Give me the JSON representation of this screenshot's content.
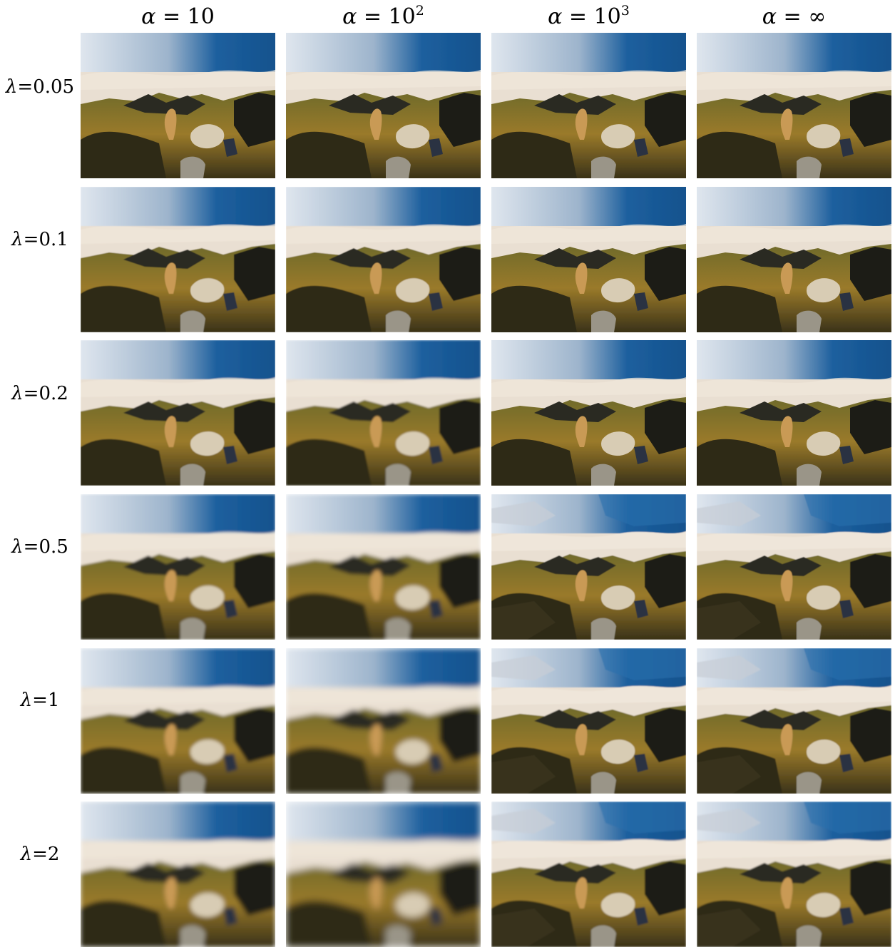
{
  "columns": [
    {
      "symbol": "α",
      "eq": " = ",
      "base": "10",
      "exp": ""
    },
    {
      "symbol": "α",
      "eq": " = ",
      "base": "10",
      "exp": "2"
    },
    {
      "symbol": "α",
      "eq": " = ",
      "base": "10",
      "exp": "3"
    },
    {
      "symbol": "α",
      "eq": " = ",
      "base": "∞",
      "exp": ""
    }
  ],
  "rows": [
    {
      "symbol": "λ",
      "eq": "=",
      "value": "0.05"
    },
    {
      "symbol": "λ",
      "eq": "=",
      "value": "0.1"
    },
    {
      "symbol": "λ",
      "eq": "=",
      "value": "0.2"
    },
    {
      "symbol": "λ",
      "eq": "=",
      "value": "0.5"
    },
    {
      "symbol": "λ",
      "eq": "=",
      "value": "1"
    },
    {
      "symbol": "λ",
      "eq": "=",
      "value": "2"
    }
  ],
  "palette": {
    "sky_blue": "#1c5f9e",
    "sky_light": "#dfe6ee",
    "cloud": "#e9dfd2",
    "mountain": "#2a2a22",
    "hill_green": "#6e6a2c",
    "grass_gold": "#9a7a2a",
    "dog": "#c99a55",
    "rock": "#d8ccb4",
    "shadow": "#1c1a14"
  }
}
